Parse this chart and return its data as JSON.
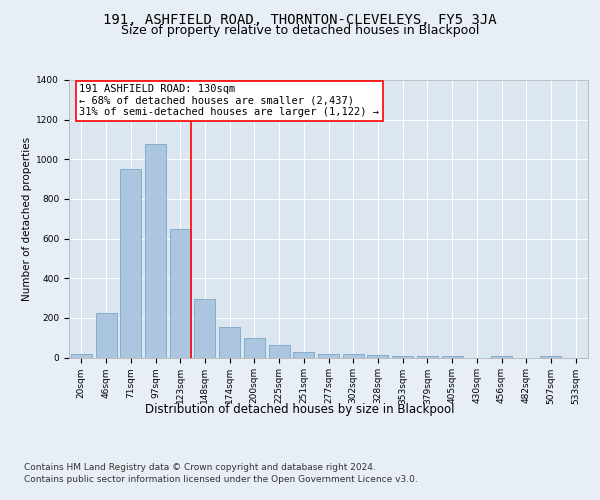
{
  "title": "191, ASHFIELD ROAD, THORNTON-CLEVELEYS, FY5 3JA",
  "subtitle": "Size of property relative to detached houses in Blackpool",
  "xlabel": "Distribution of detached houses by size in Blackpool",
  "ylabel": "Number of detached properties",
  "categories": [
    "20sqm",
    "46sqm",
    "71sqm",
    "97sqm",
    "123sqm",
    "148sqm",
    "174sqm",
    "200sqm",
    "225sqm",
    "251sqm",
    "277sqm",
    "302sqm",
    "328sqm",
    "353sqm",
    "379sqm",
    "405sqm",
    "430sqm",
    "456sqm",
    "482sqm",
    "507sqm",
    "533sqm"
  ],
  "values": [
    20,
    225,
    950,
    1075,
    650,
    295,
    155,
    100,
    65,
    30,
    20,
    20,
    15,
    10,
    10,
    10,
    0,
    10,
    0,
    10,
    0
  ],
  "bar_color": "#adc6e0",
  "bar_edge_color": "#6a9ec0",
  "bar_linewidth": 0.5,
  "vline_x_index": 4,
  "vline_color": "red",
  "vline_linewidth": 1.2,
  "annotation_text": "191 ASHFIELD ROAD: 130sqm\n← 68% of detached houses are smaller (2,437)\n31% of semi-detached houses are larger (1,122) →",
  "annotation_box_color": "white",
  "annotation_box_edge": "red",
  "ylim": [
    0,
    1400
  ],
  "yticks": [
    0,
    200,
    400,
    600,
    800,
    1000,
    1200,
    1400
  ],
  "bg_color": "#e8eef5",
  "plot_bg_color": "#dce6f0",
  "grid_color": "#ffffff",
  "footer1": "Contains HM Land Registry data © Crown copyright and database right 2024.",
  "footer2": "Contains public sector information licensed under the Open Government Licence v3.0.",
  "title_fontsize": 10,
  "subtitle_fontsize": 9,
  "xlabel_fontsize": 8.5,
  "ylabel_fontsize": 7.5,
  "tick_fontsize": 6.5,
  "annotation_fontsize": 7.5,
  "footer_fontsize": 6.5
}
